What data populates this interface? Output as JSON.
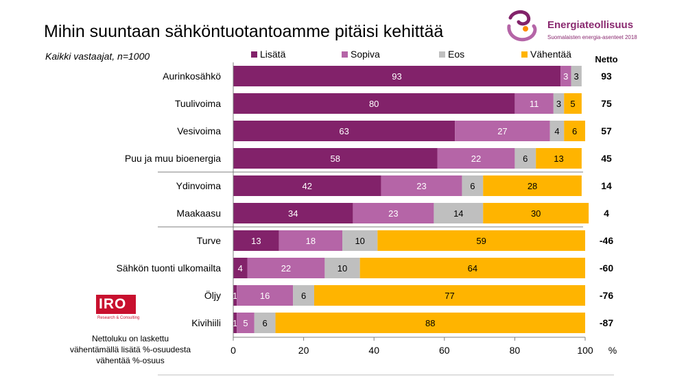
{
  "header": {
    "title": "Mihin suuntaan sähköntuotantoamme pitäisi kehittää",
    "subtitle": "Kaikki vastaajat, n=1000"
  },
  "logos": {
    "industry_name": "Energiateollisuus",
    "industry_tagline": "Suomalaisten energia-asenteet 2018",
    "iro_name": "IRO",
    "iro_tagline": "Research & Consulting"
  },
  "note": {
    "lines": [
      "Nettoluku on laskettu",
      "vähentämällä lisätä %-osuudesta",
      "vähentää %-osuus"
    ]
  },
  "colors": {
    "lisata": "#82226a",
    "sopiva": "#b565a7",
    "eos": "#bfbfbf",
    "vahentaa": "#ffb400"
  },
  "chart_data": {
    "type": "bar",
    "orientation": "horizontal",
    "stacked": true,
    "categories": [
      "Aurinkosähkö",
      "Tuulivoima",
      "Vesivoima",
      "Puu ja muu bioenergia",
      "Ydinvoima",
      "Maakaasu",
      "Turve",
      "Sähkön tuonti ulkomailta",
      "Öljy",
      "Kivihiili"
    ],
    "series": [
      {
        "name": "Lisätä",
        "values": [
          93,
          80,
          63,
          58,
          42,
          34,
          13,
          4,
          1,
          1
        ]
      },
      {
        "name": "Sopiva",
        "values": [
          3,
          11,
          27,
          22,
          23,
          23,
          18,
          22,
          16,
          5
        ]
      },
      {
        "name": "Eos",
        "values": [
          3,
          3,
          4,
          6,
          6,
          14,
          10,
          10,
          6,
          6
        ]
      },
      {
        "name": "Vähentää",
        "values": [
          0,
          5,
          6,
          13,
          28,
          30,
          59,
          64,
          77,
          88
        ]
      }
    ],
    "net_label": "Netto",
    "net_values": [
      93,
      75,
      57,
      45,
      14,
      4,
      -46,
      -60,
      -76,
      -87
    ],
    "x_ticks": [
      0,
      20,
      40,
      60,
      80,
      100
    ],
    "x_unit": "%",
    "xlim": [
      0,
      100
    ],
    "group_separators_after": [
      3,
      5
    ],
    "legend_position": "top",
    "grid": false
  }
}
